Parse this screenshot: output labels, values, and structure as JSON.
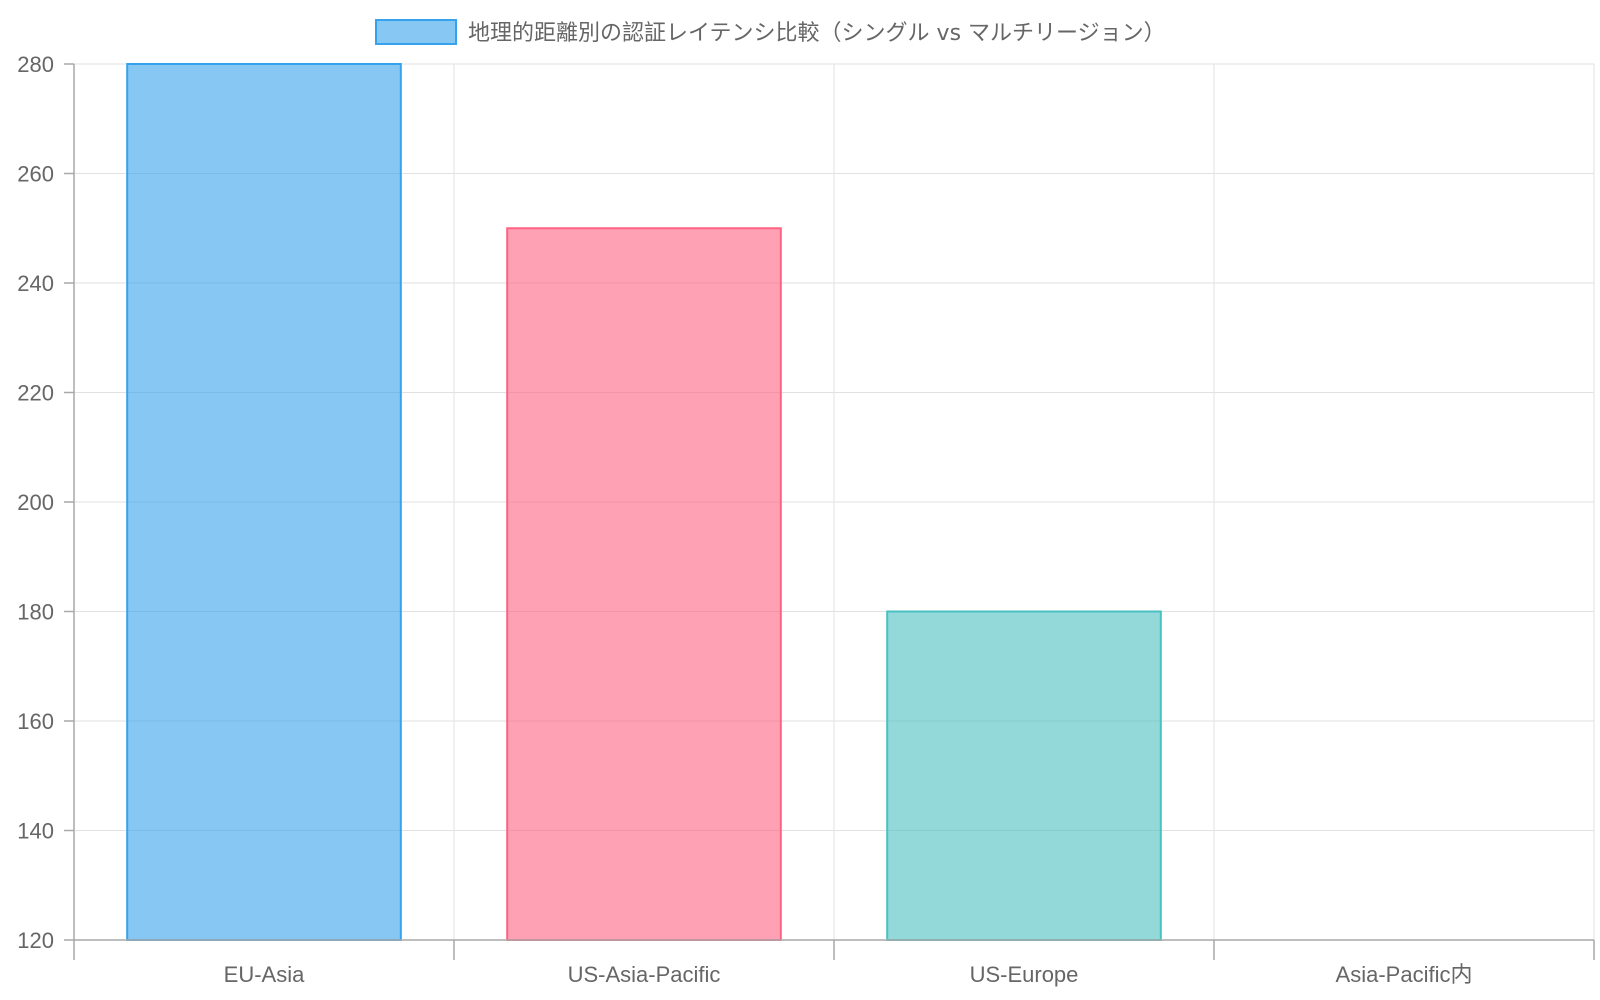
{
  "chart_data": {
    "type": "bar",
    "categories": [
      "EU-Asia",
      "US-Asia-Pacific",
      "US-Europe",
      "Asia-Pacific内"
    ],
    "series": [
      {
        "name": "地理的距離別の認証レイテンシ比較（シングル vs マルチリージョン）",
        "values": [
          280,
          250,
          180,
          120
        ]
      }
    ],
    "colors": {
      "fills": [
        "#36a2eb",
        "#ff6384",
        "#4bc0c0",
        "#ff9f40"
      ],
      "fill_opacity": 0.6,
      "grid": "#e2e2e2",
      "axis": "#a9a9a9",
      "text": "#666666"
    },
    "y_ticks": [
      120,
      140,
      160,
      180,
      200,
      220,
      240,
      260,
      280
    ],
    "ylim": [
      120,
      280
    ],
    "grid": true,
    "legend_position": "top-center",
    "title": "",
    "xlabel": "",
    "ylabel": ""
  }
}
